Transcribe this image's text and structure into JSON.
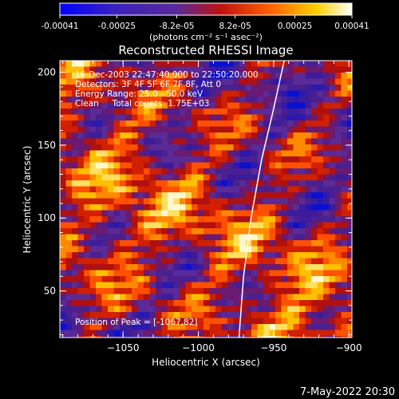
{
  "colorbar": {
    "tick_labels": [
      "-0.00041",
      "-0.00025",
      "-8.2e-05",
      "8.2e-05",
      "0.00025",
      "0.00041"
    ],
    "tick_values": [
      -0.00041,
      -0.00025,
      -8.2e-05,
      8.2e-05,
      0.00025,
      0.00041
    ],
    "unit_label": "(photons cm⁻² s⁻¹ asec⁻²)",
    "range": [
      -0.00041,
      0.00041
    ],
    "colors": [
      "#0000ff",
      "#3a1aa8",
      "#5a2a9a",
      "#c01010",
      "#ff6000",
      "#ffd000",
      "#ffffff"
    ]
  },
  "info": {
    "line1": "16-Dec-2003 22:47:40.000 to 22:50:20.000",
    "line2": "Detectors: 3F 4F 5F 6F 7F 8F, Att 0",
    "line3": "Energy Range: 25.0 - 50.0 keV",
    "line4": "Clean     Total counts: 1.75E+03",
    "peak": "Position of Peak = [-1067,82]"
  },
  "footer": {
    "date": "7-May-2022 20:30"
  },
  "chart_data": {
    "type": "heatmap",
    "title": "Reconstructed RHESSI Image",
    "xlabel": "Heliocentric X (arcsec)",
    "ylabel": "Heliocentric Y (arcsec)",
    "xlim": [
      -1092,
      -898
    ],
    "ylim": [
      18,
      208
    ],
    "x_ticks": [
      -1050,
      -1000,
      -950,
      -900
    ],
    "x_tick_labels": [
      "−1050",
      "−1000",
      "−950",
      "−900"
    ],
    "y_ticks": [
      50,
      100,
      150,
      200
    ],
    "y_tick_labels": [
      "50",
      "100",
      "150",
      "200"
    ],
    "peak_position": [
      -1067,
      82
    ],
    "limb_curve": [
      [
        -973,
        18
      ],
      [
        -970,
        60
      ],
      [
        -965,
        100
      ],
      [
        -958,
        140
      ],
      [
        -950,
        175
      ],
      [
        -943,
        208
      ]
    ]
  }
}
